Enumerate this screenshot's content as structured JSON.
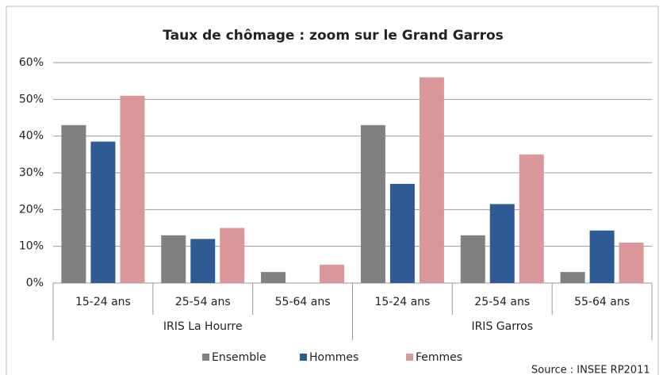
{
  "chart_data": {
    "type": "bar",
    "title": "Taux de chômage : zoom sur le Grand Garros",
    "categories": [
      "15-24 ans",
      "25-54 ans",
      "55-64 ans",
      "15-24 ans",
      "25-54 ans",
      "55-64 ans"
    ],
    "groups": [
      "IRIS La Hourre",
      "IRIS Garros"
    ],
    "series": [
      {
        "name": "Ensemble",
        "color": "#808080",
        "values": [
          43,
          13,
          3,
          43,
          13,
          3
        ]
      },
      {
        "name": "Hommes",
        "color": "#2f5b94",
        "values": [
          38.5,
          12,
          0,
          27,
          21.5,
          14.3
        ]
      },
      {
        "name": "Femmes",
        "color": "#d9979a",
        "values": [
          51,
          15,
          5,
          56,
          35,
          11
        ]
      }
    ],
    "ylim": [
      0,
      60
    ],
    "yticks": [
      {
        "value": 0,
        "label": "0%"
      },
      {
        "value": 10,
        "label": "10%"
      },
      {
        "value": 20,
        "label": "20%"
      },
      {
        "value": 30,
        "label": "30%"
      },
      {
        "value": 40,
        "label": "40%"
      },
      {
        "value": 50,
        "label": "50%"
      },
      {
        "value": 60,
        "label": "60%"
      }
    ],
    "grid": true,
    "legend": "bottom",
    "source": "Source : INSEE RP2011"
  }
}
